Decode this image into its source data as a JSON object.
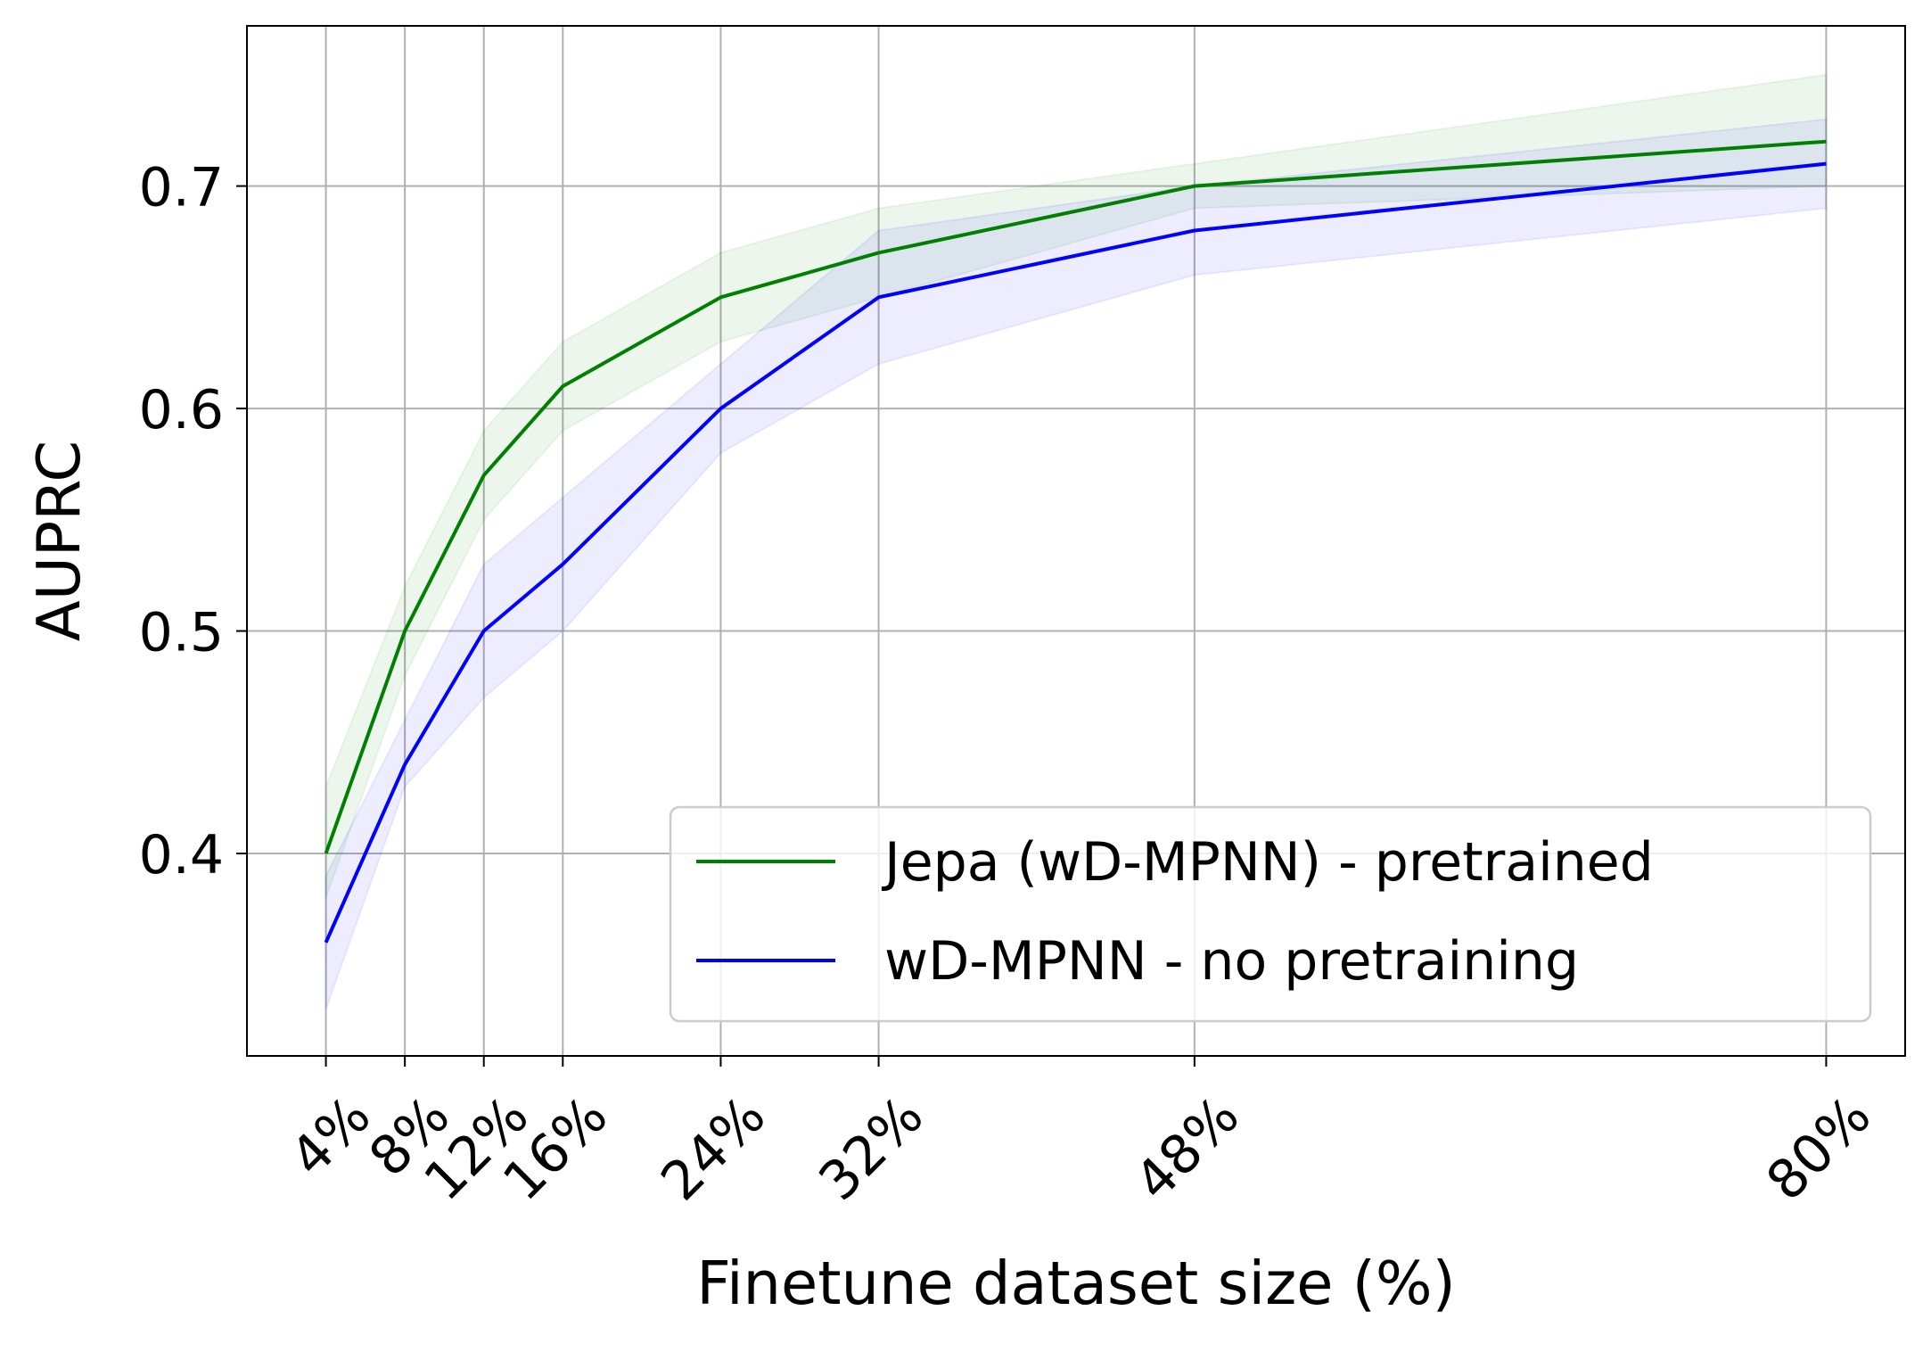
{
  "chart_data": {
    "type": "line",
    "title": "",
    "xlabel": "Finetune dataset size (%)",
    "ylabel": "AUPRC",
    "x": [
      4,
      8,
      12,
      16,
      24,
      32,
      48,
      80
    ],
    "x_tick_labels": [
      "4%",
      "8%",
      "12%",
      "16%",
      "24%",
      "32%",
      "48%",
      "80%"
    ],
    "y_ticks": [
      0.4,
      0.5,
      0.6,
      0.7
    ],
    "y_tick_labels": [
      "0.4",
      "0.5",
      "0.6",
      "0.7"
    ],
    "xlim": [
      0.0,
      84.0
    ],
    "ylim": [
      0.309,
      0.772
    ],
    "grid": true,
    "legend_position": "lower-right",
    "series": [
      {
        "name": "Jepa (wD-MPNN) - pretrained",
        "color": "#008000",
        "values": [
          0.4,
          0.5,
          0.57,
          0.61,
          0.65,
          0.67,
          0.7,
          0.72
        ],
        "lower": [
          0.38,
          0.48,
          0.55,
          0.59,
          0.63,
          0.65,
          0.69,
          0.7
        ],
        "upper": [
          0.43,
          0.52,
          0.59,
          0.63,
          0.67,
          0.69,
          0.71,
          0.75
        ]
      },
      {
        "name": "wD-MPNN - no pretraining",
        "color": "#0000ff",
        "values": [
          0.36,
          0.44,
          0.5,
          0.53,
          0.6,
          0.65,
          0.68,
          0.71
        ],
        "lower": [
          0.33,
          0.43,
          0.47,
          0.5,
          0.58,
          0.62,
          0.66,
          0.69
        ],
        "upper": [
          0.39,
          0.46,
          0.53,
          0.56,
          0.62,
          0.68,
          0.7,
          0.73
        ]
      }
    ]
  }
}
